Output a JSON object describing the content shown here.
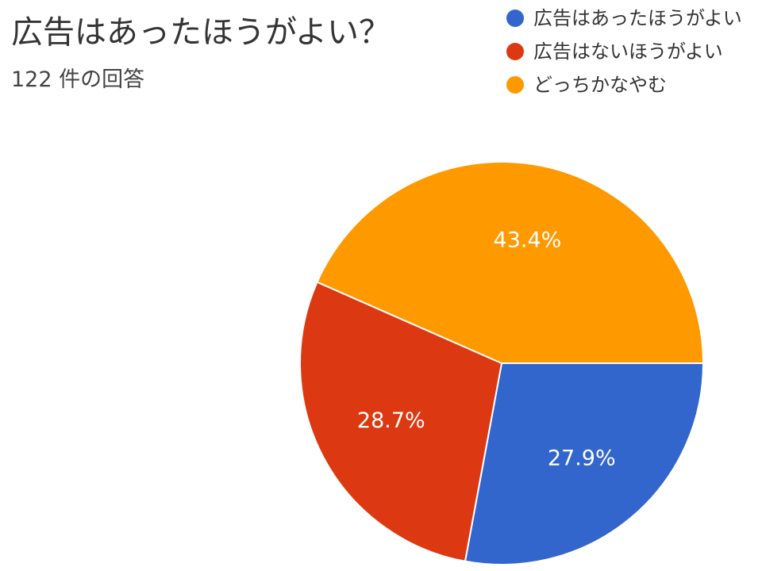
{
  "title": "広告はあったほうがよい？",
  "subtitle": "122 件の回答",
  "chart_data": {
    "type": "pie",
    "title": "広告はあったほうがよい？",
    "slices": [
      {
        "label": "広告はあったほうがよい",
        "value": 27.9,
        "display": "27.9%",
        "color": "#3366cc"
      },
      {
        "label": "広告はないほうがよい",
        "value": 28.7,
        "display": "28.7%",
        "color": "#dc3912"
      },
      {
        "label": "どっちかなやむ",
        "value": 43.4,
        "display": "43.4%",
        "color": "#ff9900"
      }
    ],
    "legend": "top-right"
  }
}
